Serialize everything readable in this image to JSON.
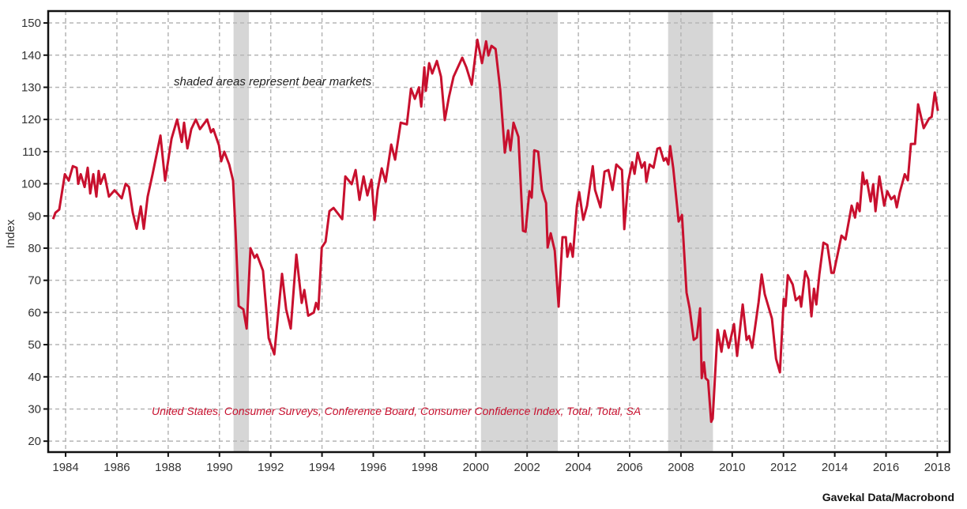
{
  "chart_data": {
    "type": "line",
    "title": "",
    "xlabel": "",
    "ylabel": "Index",
    "xlim": [
      1983.32,
      2018.48
    ],
    "ylim": [
      16.6,
      153.7
    ],
    "grid": true,
    "x_ticks": [
      "1984",
      "1986",
      "1988",
      "1990",
      "1992",
      "1994",
      "1996",
      "1998",
      "2000",
      "2002",
      "2004",
      "2006",
      "2008",
      "2010",
      "2012",
      "2014",
      "2016",
      "2018"
    ],
    "y_ticks": [
      "20",
      "30",
      "40",
      "50",
      "60",
      "70",
      "80",
      "90",
      "100",
      "110",
      "120",
      "130",
      "140",
      "150"
    ],
    "annotation": "shaded areas represent bear markets",
    "bear_markets": [
      [
        1990.55,
        1991.15
      ],
      [
        2000.2,
        2003.2
      ],
      [
        2007.5,
        2009.25
      ]
    ],
    "colors": {
      "line": "#c8102e",
      "shade": "#d6d6d6",
      "grid": "#b5b5b5"
    },
    "series": [
      {
        "name": "United States, Consumer Surveys, Conference Board, Consumer Confidence Index, Total, Total, SA",
        "points": [
          [
            1983.51,
            89
          ],
          [
            1983.6,
            91
          ],
          [
            1983.75,
            92
          ],
          [
            1983.97,
            103
          ],
          [
            1984.12,
            101
          ],
          [
            1984.28,
            105.5
          ],
          [
            1984.43,
            105
          ],
          [
            1984.49,
            100
          ],
          [
            1984.59,
            103
          ],
          [
            1984.74,
            99
          ],
          [
            1984.86,
            105
          ],
          [
            1984.96,
            97
          ],
          [
            1985.08,
            103
          ],
          [
            1985.2,
            96
          ],
          [
            1985.29,
            104
          ],
          [
            1985.36,
            100
          ],
          [
            1985.51,
            103
          ],
          [
            1985.69,
            96
          ],
          [
            1985.91,
            98
          ],
          [
            1986.19,
            95.5
          ],
          [
            1986.34,
            100
          ],
          [
            1986.47,
            99
          ],
          [
            1986.62,
            91
          ],
          [
            1986.77,
            86
          ],
          [
            1986.93,
            93
          ],
          [
            1987.05,
            86
          ],
          [
            1987.2,
            96
          ],
          [
            1987.39,
            103
          ],
          [
            1987.7,
            115
          ],
          [
            1987.88,
            101
          ],
          [
            1988.13,
            114
          ],
          [
            1988.35,
            120
          ],
          [
            1988.53,
            113
          ],
          [
            1988.62,
            119
          ],
          [
            1988.75,
            111
          ],
          [
            1988.9,
            117
          ],
          [
            1989.08,
            120
          ],
          [
            1989.24,
            117
          ],
          [
            1989.52,
            120
          ],
          [
            1989.67,
            116
          ],
          [
            1989.76,
            117
          ],
          [
            1989.98,
            112
          ],
          [
            1990.07,
            107
          ],
          [
            1990.19,
            110
          ],
          [
            1990.38,
            106
          ],
          [
            1990.53,
            101
          ],
          [
            1990.63,
            85
          ],
          [
            1990.75,
            62
          ],
          [
            1990.93,
            61
          ],
          [
            1991.06,
            55
          ],
          [
            1991.21,
            80
          ],
          [
            1991.37,
            77
          ],
          [
            1991.46,
            78
          ],
          [
            1991.7,
            73
          ],
          [
            1991.92,
            52
          ],
          [
            1992.14,
            47
          ],
          [
            1992.44,
            72
          ],
          [
            1992.6,
            61
          ],
          [
            1992.78,
            55
          ],
          [
            1993.0,
            78
          ],
          [
            1993.21,
            63
          ],
          [
            1993.31,
            67
          ],
          [
            1993.46,
            59
          ],
          [
            1993.68,
            60
          ],
          [
            1993.77,
            63
          ],
          [
            1993.86,
            61
          ],
          [
            1993.99,
            80.2
          ],
          [
            1994.14,
            82
          ],
          [
            1994.29,
            91.5
          ],
          [
            1994.45,
            92.5
          ],
          [
            1994.79,
            89
          ],
          [
            1994.91,
            102.3
          ],
          [
            1995.16,
            99.9
          ],
          [
            1995.31,
            104.3
          ],
          [
            1995.46,
            95
          ],
          [
            1995.62,
            102.3
          ],
          [
            1995.77,
            96.4
          ],
          [
            1995.93,
            101.3
          ],
          [
            1996.05,
            88.8
          ],
          [
            1996.17,
            98.1
          ],
          [
            1996.33,
            104.8
          ],
          [
            1996.48,
            100.6
          ],
          [
            1996.7,
            112.2
          ],
          [
            1996.85,
            107.5
          ],
          [
            1997.07,
            119
          ],
          [
            1997.31,
            118.5
          ],
          [
            1997.47,
            129.6
          ],
          [
            1997.62,
            126.4
          ],
          [
            1997.78,
            130
          ],
          [
            1997.87,
            124
          ],
          [
            1997.99,
            136.2
          ],
          [
            1998.05,
            128.9
          ],
          [
            1998.18,
            137.5
          ],
          [
            1998.3,
            134.3
          ],
          [
            1998.48,
            138.2
          ],
          [
            1998.64,
            133.3
          ],
          [
            1998.79,
            119.8
          ],
          [
            1998.95,
            126.9
          ],
          [
            1999.13,
            133.3
          ],
          [
            1999.47,
            139.2
          ],
          [
            1999.63,
            136.2
          ],
          [
            1999.84,
            130.8
          ],
          [
            2000.06,
            144.8
          ],
          [
            2000.24,
            137.5
          ],
          [
            2000.4,
            144.3
          ],
          [
            2000.49,
            139.9
          ],
          [
            2000.61,
            142.9
          ],
          [
            2000.77,
            141.9
          ],
          [
            2000.95,
            129.4
          ],
          [
            2001.13,
            109.7
          ],
          [
            2001.26,
            116.6
          ],
          [
            2001.35,
            110.4
          ],
          [
            2001.47,
            119
          ],
          [
            2001.66,
            114.6
          ],
          [
            2001.84,
            85.4
          ],
          [
            2001.94,
            85.1
          ],
          [
            2002.09,
            97.7
          ],
          [
            2002.18,
            95.7
          ],
          [
            2002.28,
            110.4
          ],
          [
            2002.43,
            110
          ],
          [
            2002.58,
            98.1
          ],
          [
            2002.74,
            94
          ],
          [
            2002.8,
            80.2
          ],
          [
            2002.92,
            84.6
          ],
          [
            2003.08,
            79.2
          ],
          [
            2003.23,
            61.8
          ],
          [
            2003.38,
            83.4
          ],
          [
            2003.51,
            83.4
          ],
          [
            2003.57,
            77.3
          ],
          [
            2003.69,
            81.4
          ],
          [
            2003.78,
            77.3
          ],
          [
            2003.94,
            93.2
          ],
          [
            2004.03,
            97.4
          ],
          [
            2004.19,
            88.8
          ],
          [
            2004.34,
            93.2
          ],
          [
            2004.56,
            105.5
          ],
          [
            2004.65,
            98.1
          ],
          [
            2004.86,
            92.7
          ],
          [
            2005.02,
            103.8
          ],
          [
            2005.17,
            104.3
          ],
          [
            2005.33,
            98.1
          ],
          [
            2005.48,
            106
          ],
          [
            2005.7,
            104.3
          ],
          [
            2005.79,
            85.9
          ],
          [
            2005.94,
            100.6
          ],
          [
            2006.1,
            106.7
          ],
          [
            2006.19,
            103.1
          ],
          [
            2006.31,
            109.7
          ],
          [
            2006.47,
            105
          ],
          [
            2006.59,
            106.7
          ],
          [
            2006.65,
            100.6
          ],
          [
            2006.78,
            106
          ],
          [
            2006.93,
            105
          ],
          [
            2007.08,
            110.9
          ],
          [
            2007.18,
            111.2
          ],
          [
            2007.33,
            107.2
          ],
          [
            2007.42,
            108
          ],
          [
            2007.51,
            106
          ],
          [
            2007.58,
            111.7
          ],
          [
            2007.7,
            104.8
          ],
          [
            2007.91,
            88.3
          ],
          [
            2008.04,
            90.3
          ],
          [
            2008.22,
            66.2
          ],
          [
            2008.34,
            61.3
          ],
          [
            2008.5,
            51.5
          ],
          [
            2008.62,
            52.2
          ],
          [
            2008.75,
            61.3
          ],
          [
            2008.81,
            39.6
          ],
          [
            2008.9,
            44.5
          ],
          [
            2008.96,
            39.6
          ],
          [
            2009.06,
            38.8
          ],
          [
            2009.18,
            26
          ],
          [
            2009.24,
            27
          ],
          [
            2009.43,
            54.6
          ],
          [
            2009.58,
            47.8
          ],
          [
            2009.7,
            54.4
          ],
          [
            2009.86,
            49
          ],
          [
            2010.07,
            56.4
          ],
          [
            2010.19,
            46.5
          ],
          [
            2010.41,
            62.5
          ],
          [
            2010.56,
            51.5
          ],
          [
            2010.66,
            52.7
          ],
          [
            2010.78,
            49
          ],
          [
            2011.03,
            63.2
          ],
          [
            2011.15,
            71.8
          ],
          [
            2011.27,
            65.7
          ],
          [
            2011.55,
            58.1
          ],
          [
            2011.71,
            45.6
          ],
          [
            2011.86,
            41.4
          ],
          [
            2012.01,
            64.2
          ],
          [
            2012.08,
            62
          ],
          [
            2012.17,
            71.6
          ],
          [
            2012.36,
            68.7
          ],
          [
            2012.48,
            63.8
          ],
          [
            2012.63,
            65
          ],
          [
            2012.69,
            61.8
          ],
          [
            2012.85,
            72.8
          ],
          [
            2012.97,
            70.4
          ],
          [
            2013.09,
            58.8
          ],
          [
            2013.19,
            67.4
          ],
          [
            2013.28,
            62.5
          ],
          [
            2013.4,
            71.8
          ],
          [
            2013.56,
            81.7
          ],
          [
            2013.71,
            81
          ],
          [
            2013.87,
            72.3
          ],
          [
            2013.96,
            72.3
          ],
          [
            2014.14,
            79.2
          ],
          [
            2014.26,
            83.9
          ],
          [
            2014.42,
            82.7
          ],
          [
            2014.66,
            93.2
          ],
          [
            2014.79,
            89.5
          ],
          [
            2014.88,
            94
          ],
          [
            2014.97,
            91.5
          ],
          [
            2015.09,
            103.5
          ],
          [
            2015.16,
            99.9
          ],
          [
            2015.25,
            101.1
          ],
          [
            2015.4,
            94.5
          ],
          [
            2015.5,
            99.9
          ],
          [
            2015.59,
            91.5
          ],
          [
            2015.74,
            102.3
          ],
          [
            2015.93,
            93.2
          ],
          [
            2016.05,
            97.7
          ],
          [
            2016.2,
            95.2
          ],
          [
            2016.33,
            96.2
          ],
          [
            2016.42,
            92.7
          ],
          [
            2016.54,
            97.4
          ],
          [
            2016.73,
            103
          ],
          [
            2016.85,
            101.1
          ],
          [
            2016.97,
            112.4
          ],
          [
            2017.13,
            112.4
          ],
          [
            2017.25,
            124.7
          ],
          [
            2017.47,
            117.3
          ],
          [
            2017.68,
            120.3
          ],
          [
            2017.78,
            120.8
          ],
          [
            2017.9,
            128.4
          ],
          [
            2018.02,
            122.7
          ]
        ]
      }
    ],
    "source": "Gavekal Data/Macrobond"
  }
}
